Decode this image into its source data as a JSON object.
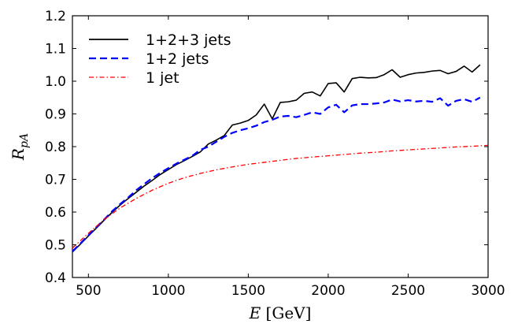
{
  "chart_data": {
    "type": "line",
    "xlabel": "E [GeV]",
    "ylabel": "R_pA",
    "xlim": [
      400,
      3000
    ],
    "ylim": [
      0.4,
      1.2
    ],
    "xticks": [
      500,
      1000,
      1500,
      2000,
      2500,
      3000
    ],
    "yticks": [
      0.4,
      0.5,
      0.6,
      0.7,
      0.8,
      0.9,
      1.0,
      1.1,
      1.2
    ],
    "xtick_labels": [
      "500",
      "1000",
      "1500",
      "2000",
      "2500",
      "3000"
    ],
    "ytick_labels": [
      "0.4",
      "0.5",
      "0.6",
      "0.7",
      "0.8",
      "0.9",
      "1.0",
      "1.1",
      "1.2"
    ],
    "grid": false,
    "legend_position": "top-left",
    "series": [
      {
        "name": "1+2+3 jets",
        "color": "#000000",
        "style": "solid",
        "x": [
          400,
          450,
          500,
          550,
          600,
          650,
          700,
          750,
          800,
          850,
          900,
          950,
          1000,
          1050,
          1100,
          1150,
          1200,
          1250,
          1300,
          1350,
          1400,
          1450,
          1500,
          1550,
          1600,
          1650,
          1700,
          1750,
          1800,
          1850,
          1900,
          1950,
          2000,
          2050,
          2100,
          2150,
          2200,
          2250,
          2300,
          2350,
          2400,
          2450,
          2500,
          2550,
          2600,
          2650,
          2700,
          2750,
          2800,
          2850,
          2900,
          2950
        ],
        "y": [
          0.478,
          0.502,
          0.527,
          0.551,
          0.576,
          0.6,
          0.622,
          0.642,
          0.661,
          0.68,
          0.697,
          0.715,
          0.73,
          0.745,
          0.757,
          0.77,
          0.784,
          0.808,
          0.82,
          0.834,
          0.866,
          0.872,
          0.88,
          0.897,
          0.93,
          0.885,
          0.935,
          0.937,
          0.942,
          0.963,
          0.967,
          0.955,
          0.993,
          0.995,
          0.967,
          1.008,
          1.012,
          1.01,
          1.011,
          1.02,
          1.035,
          1.012,
          1.02,
          1.025,
          1.027,
          1.031,
          1.033,
          1.023,
          1.03,
          1.046,
          1.028,
          1.05
        ]
      },
      {
        "name": "1+2 jets",
        "color": "#0000ff",
        "style": "dashed",
        "x": [
          400,
          450,
          500,
          550,
          600,
          650,
          700,
          750,
          800,
          850,
          900,
          950,
          1000,
          1050,
          1100,
          1150,
          1200,
          1250,
          1300,
          1350,
          1400,
          1450,
          1500,
          1550,
          1600,
          1650,
          1700,
          1750,
          1800,
          1850,
          1900,
          1950,
          2000,
          2050,
          2100,
          2150,
          2200,
          2250,
          2300,
          2350,
          2400,
          2450,
          2500,
          2550,
          2600,
          2650,
          2700,
          2750,
          2800,
          2850,
          2900,
          2950
        ],
        "y": [
          0.48,
          0.504,
          0.529,
          0.554,
          0.578,
          0.603,
          0.625,
          0.645,
          0.667,
          0.686,
          0.704,
          0.72,
          0.734,
          0.748,
          0.76,
          0.772,
          0.79,
          0.8,
          0.815,
          0.83,
          0.842,
          0.85,
          0.856,
          0.864,
          0.875,
          0.882,
          0.892,
          0.894,
          0.89,
          0.897,
          0.905,
          0.9,
          0.92,
          0.928,
          0.905,
          0.926,
          0.93,
          0.93,
          0.932,
          0.935,
          0.944,
          0.938,
          0.942,
          0.938,
          0.94,
          0.937,
          0.948,
          0.925,
          0.94,
          0.945,
          0.937,
          0.95
        ]
      },
      {
        "name": "1 jet",
        "color": "#ff0000",
        "style": "dashdot",
        "x": [
          400,
          500,
          600,
          700,
          800,
          900,
          1000,
          1100,
          1200,
          1300,
          1400,
          1500,
          1600,
          1700,
          1800,
          1900,
          2000,
          2100,
          2200,
          2300,
          2400,
          2500,
          2600,
          2700,
          2800,
          2900,
          3000
        ],
        "y": [
          0.49,
          0.535,
          0.578,
          0.613,
          0.642,
          0.667,
          0.688,
          0.705,
          0.718,
          0.729,
          0.738,
          0.746,
          0.752,
          0.758,
          0.764,
          0.768,
          0.772,
          0.776,
          0.78,
          0.783,
          0.787,
          0.79,
          0.793,
          0.796,
          0.799,
          0.801,
          0.804
        ]
      }
    ]
  }
}
